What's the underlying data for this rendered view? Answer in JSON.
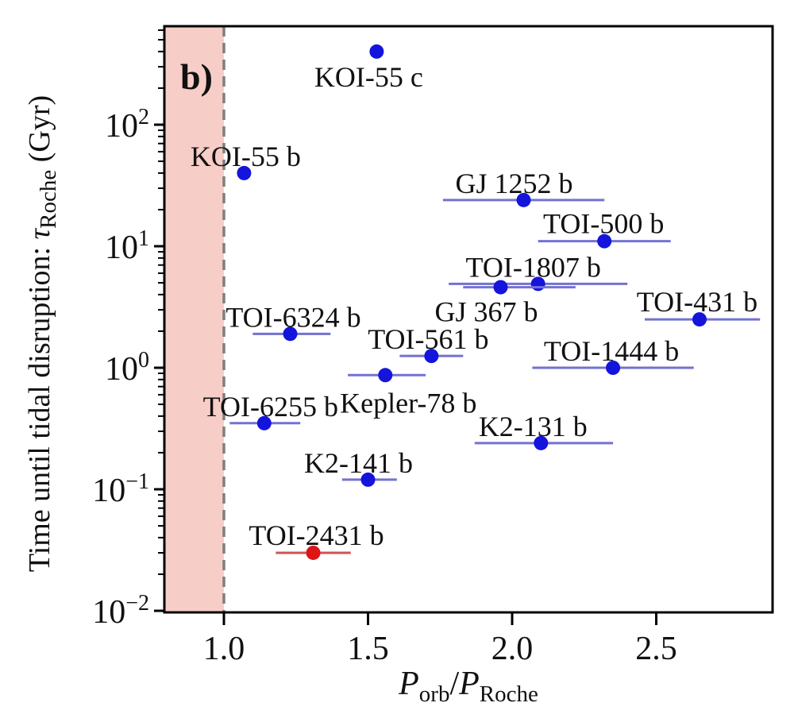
{
  "panel_label": "b)",
  "colors": {
    "background": "#ffffff",
    "frame": "#000000",
    "text": "#111111",
    "blue_point": "#1414dd",
    "blue_errbar": "#7272d2",
    "red_point": "#dd1515",
    "red_errbar": "#cf5454",
    "shaded_region": "#f7cdc8",
    "dashed_line": "#7f7f7f"
  },
  "chart_data": {
    "type": "scatter",
    "title": "",
    "panel_tag": "b)",
    "xlabel_parts": {
      "p": "P",
      "sub1": "orb",
      "slash": "/",
      "p2": "P",
      "sub2": "Roche"
    },
    "ylabel_parts": {
      "prefix": "Time until tidal disruption: ",
      "tau": "τ",
      "sub": "Roche",
      "suffix": " (Gyr)"
    },
    "x_axis": {
      "scale": "linear",
      "min": 0.7934,
      "max": 2.9035,
      "ticks": [
        1.0,
        1.5,
        2.0,
        2.5
      ],
      "tick_labels": [
        "1.0",
        "1.5",
        "2.0",
        "2.5"
      ]
    },
    "y_axis": {
      "scale": "log",
      "log_min": -2.0131,
      "log_max": 2.8105,
      "tick_exponents": [
        2,
        1,
        0,
        -1,
        -2
      ],
      "tick_base": "10",
      "minor_ticks": true
    },
    "grid": false,
    "legend": false,
    "shaded_region": {
      "x_start": 0.7934,
      "x_end": 1.0
    },
    "dashed_line_x": 1.0,
    "series": [
      {
        "name": "KOI-55 c",
        "x": 1.53,
        "y": 400,
        "xerr_minus": 0,
        "xerr_plus": 0,
        "color": "blue",
        "label_dx": -10,
        "label_dy": 44
      },
      {
        "name": "KOI-55 b",
        "x": 1.07,
        "y": 40,
        "xerr_minus": 0,
        "xerr_plus": 0,
        "color": "blue",
        "label_dx": 2,
        "label_dy": -9
      },
      {
        "name": "GJ 1252 b",
        "x": 2.04,
        "y": 24,
        "xerr_minus": 0.28,
        "xerr_plus": 0.28,
        "color": "blue",
        "label_dx": -12,
        "label_dy": -9
      },
      {
        "name": "TOI-500 b",
        "x": 2.32,
        "y": 11,
        "xerr_minus": 0.23,
        "xerr_plus": 0.23,
        "color": "blue",
        "label_dx": -1,
        "label_dy": -10
      },
      {
        "name": "TOI-1807 b",
        "x": 2.09,
        "y": 4.9,
        "xerr_minus": 0.31,
        "xerr_plus": 0.31,
        "color": "blue",
        "label_dx": -6,
        "label_dy": -9
      },
      {
        "name": "GJ 367 b",
        "x": 1.96,
        "y": 4.6,
        "xerr_minus": 0.13,
        "xerr_plus": 0.26,
        "color": "blue",
        "label_dx": -18,
        "label_dy": 43
      },
      {
        "name": "TOI-431 b",
        "x": 2.65,
        "y": 2.5,
        "xerr_minus": 0.19,
        "xerr_plus": 0.21,
        "color": "blue",
        "label_dx": -3,
        "label_dy": -10
      },
      {
        "name": "TOI-6324 b",
        "x": 1.23,
        "y": 1.9,
        "xerr_minus": 0.13,
        "xerr_plus": 0.14,
        "color": "blue",
        "label_dx": 4,
        "label_dy": -9
      },
      {
        "name": "TOI-561 b",
        "x": 1.72,
        "y": 1.25,
        "xerr_minus": 0.11,
        "xerr_plus": 0.11,
        "color": "blue",
        "label_dx": -4,
        "label_dy": -9
      },
      {
        "name": "TOI-1444 b",
        "x": 2.35,
        "y": 1.0,
        "xerr_minus": 0.28,
        "xerr_plus": 0.28,
        "color": "blue",
        "label_dx": -2,
        "label_dy": -9
      },
      {
        "name": "Kepler-78 b",
        "x": 1.56,
        "y": 0.87,
        "xerr_minus": 0.13,
        "xerr_plus": 0.14,
        "color": "blue",
        "label_dx": 29,
        "label_dy": 47
      },
      {
        "name": "TOI-6255 b",
        "x": 1.14,
        "y": 0.35,
        "xerr_minus": 0.12,
        "xerr_plus": 0.125,
        "color": "blue",
        "label_dx": 8,
        "label_dy": -9
      },
      {
        "name": "K2-131 b",
        "x": 2.1,
        "y": 0.24,
        "xerr_minus": 0.23,
        "xerr_plus": 0.25,
        "color": "blue",
        "label_dx": -10,
        "label_dy": -9
      },
      {
        "name": "K2-141 b",
        "x": 1.5,
        "y": 0.12,
        "xerr_minus": 0.09,
        "xerr_plus": 0.1,
        "color": "blue",
        "label_dx": -12,
        "label_dy": -9
      },
      {
        "name": "TOI-2431 b",
        "x": 1.31,
        "y": 0.03,
        "xerr_minus": 0.13,
        "xerr_plus": 0.13,
        "color": "red",
        "label_dx": 4,
        "label_dy": -10
      }
    ]
  }
}
